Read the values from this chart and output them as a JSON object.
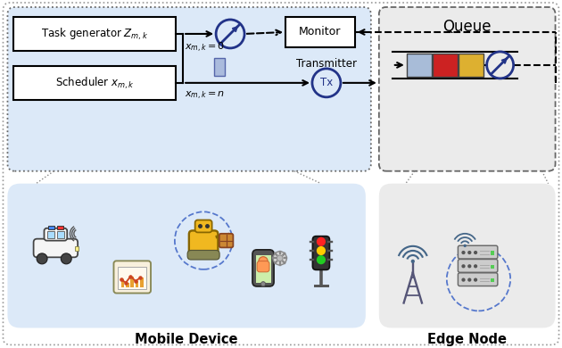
{
  "fig_width": 6.3,
  "fig_height": 3.9,
  "dpi": 100,
  "bg_color": "#ffffff",
  "mobile_device_bg": "#dce9f8",
  "edge_node_bg": "#ebebeb",
  "circle_color": "#223388",
  "queue_bar_colors": [
    "#a8bcd8",
    "#cc2222",
    "#ddb030"
  ],
  "task_gen_text": "Task generator $Z_{m,k}$",
  "scheduler_text": "Scheduler $x_{m,k}$",
  "monitor_text": "Monitor",
  "transmitter_text": "Transmitter",
  "tx_text": "Tx",
  "queue_text": "Queue",
  "label_xmk_0": "$x_{m,k}=0$",
  "label_xmk_n": "$x_{m,k}=n$",
  "mobile_device_label": "Mobile Device",
  "edge_node_label": "Edge Node"
}
